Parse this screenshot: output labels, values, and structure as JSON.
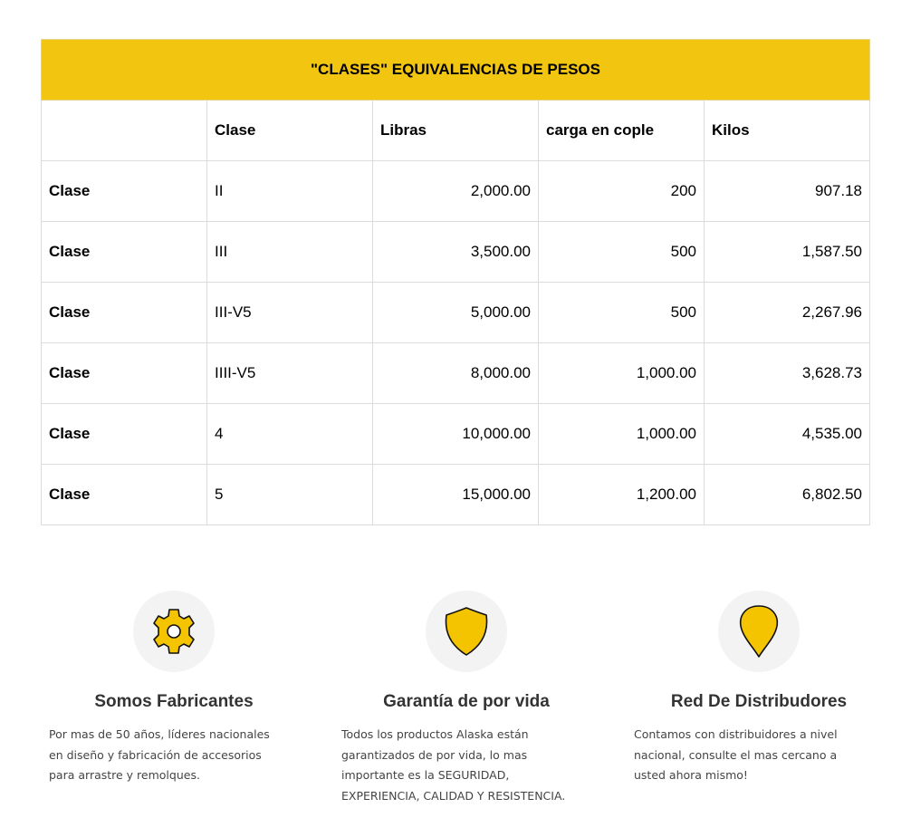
{
  "table": {
    "title": "\"CLASES\" EQUIVALENCIAS DE PESOS",
    "headers": [
      "",
      "Clase",
      "Libras",
      "carga en cople",
      "Kilos"
    ],
    "rows": [
      [
        "Clase",
        "II",
        "2,000.00",
        "200",
        "907.18"
      ],
      [
        "Clase",
        "III",
        "3,500.00",
        "500",
        "1,587.50"
      ],
      [
        "Clase",
        "III-V5",
        "5,000.00",
        "500",
        "2,267.96"
      ],
      [
        "Clase",
        "IIII-V5",
        "8,000.00",
        "1,000.00",
        "3,628.73"
      ],
      [
        "Clase",
        "4",
        "10,000.00",
        "1,000.00",
        "4,535.00"
      ],
      [
        "Clase",
        "5",
        "15,000.00",
        "1,200.00",
        "6,802.50"
      ]
    ],
    "header_color": "#f2c511"
  },
  "features": [
    {
      "icon": "gear-icon",
      "title": "Somos Fabricantes",
      "lines": [
        "Por mas de 50 años, líderes nacionales",
        "en diseño y fabricación de accesorios",
        "para arrastre y remolques."
      ]
    },
    {
      "icon": "shield-icon",
      "title": "Garantía de por vida",
      "lines": [
        "Todos los productos Alaska están",
        "garantizados de por vida, lo mas",
        "importante es la SEGURIDAD,",
        "EXPERIENCIA, CALIDAD Y RESISTENCIA."
      ]
    },
    {
      "icon": "map-pin-icon",
      "title": "Red De Distribudores",
      "lines": [
        "Contamos con distribuidores a nivel",
        "nacional, consulte el mas cercano a",
        "usted ahora mismo!"
      ]
    }
  ],
  "icon_color": "#f5c400"
}
